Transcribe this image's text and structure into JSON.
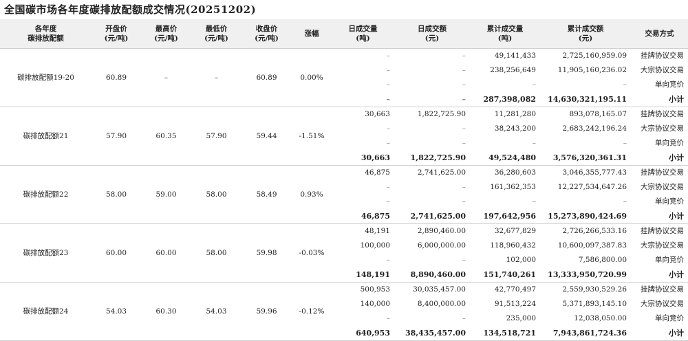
{
  "title": "全国碳市场各年度碳排放配额成交情况(20251202)",
  "headers": [
    [
      "各年度",
      "碳排放配额"
    ],
    [
      "开盘价",
      "(元/吨)"
    ],
    [
      "最高价",
      "(元/吨)"
    ],
    [
      "最低价",
      "(元/吨)"
    ],
    [
      "收盘价",
      "(元/吨)"
    ],
    [
      "涨幅",
      ""
    ],
    [
      "日成交量",
      "(吨)"
    ],
    [
      "日成交额",
      "(元)"
    ],
    [
      "累计成交量",
      "(吨)"
    ],
    [
      "累计成交额",
      "(元)"
    ],
    [
      "交易方式",
      ""
    ]
  ],
  "groups": [
    {
      "name": "碳排放配额19-20",
      "open": "60.89",
      "high": "–",
      "low": "–",
      "close": "60.89",
      "change": "0.00%",
      "rows": [
        {
          "day_vol": "–",
          "day_amt": "–",
          "cum_vol": "49,141,433",
          "cum_amt": "2,725,160,959.09",
          "method": "挂牌协议交易"
        },
        {
          "day_vol": "–",
          "day_amt": "–",
          "cum_vol": "238,256,649",
          "cum_amt": "11,905,160,236.02",
          "method": "大宗协议交易"
        },
        {
          "day_vol": "–",
          "day_amt": "–",
          "cum_vol": "–",
          "cum_amt": "–",
          "method": "单向竞价"
        },
        {
          "day_vol": "–",
          "day_amt": "–",
          "cum_vol": "287,398,082",
          "cum_amt": "14,630,321,195.11",
          "method": "小计"
        }
      ]
    },
    {
      "name": "碳排放配额21",
      "open": "57.90",
      "high": "60.35",
      "low": "57.90",
      "close": "59.44",
      "change": "-1.51%",
      "rows": [
        {
          "day_vol": "30,663",
          "day_amt": "1,822,725.90",
          "cum_vol": "11,281,280",
          "cum_amt": "893,078,165.07",
          "method": "挂牌协议交易"
        },
        {
          "day_vol": "–",
          "day_amt": "–",
          "cum_vol": "38,243,200",
          "cum_amt": "2,683,242,196.24",
          "method": "大宗协议交易"
        },
        {
          "day_vol": "–",
          "day_amt": "–",
          "cum_vol": "–",
          "cum_amt": "–",
          "method": "单向竞价"
        },
        {
          "day_vol": "30,663",
          "day_amt": "1,822,725.90",
          "cum_vol": "49,524,480",
          "cum_amt": "3,576,320,361.31",
          "method": "小计"
        }
      ]
    },
    {
      "name": "碳排放配额22",
      "open": "58.00",
      "high": "59.00",
      "low": "58.00",
      "close": "58.49",
      "change": "0.93%",
      "rows": [
        {
          "day_vol": "46,875",
          "day_amt": "2,741,625.00",
          "cum_vol": "36,280,603",
          "cum_amt": "3,046,355,777.43",
          "method": "挂牌协议交易"
        },
        {
          "day_vol": "–",
          "day_amt": "–",
          "cum_vol": "161,362,353",
          "cum_amt": "12,227,534,647.26",
          "method": "大宗协议交易"
        },
        {
          "day_vol": "–",
          "day_amt": "–",
          "cum_vol": "–",
          "cum_amt": "–",
          "method": "单向竞价"
        },
        {
          "day_vol": "46,875",
          "day_amt": "2,741,625.00",
          "cum_vol": "197,642,956",
          "cum_amt": "15,273,890,424.69",
          "method": "小计"
        }
      ]
    },
    {
      "name": "碳排放配额23",
      "open": "60.00",
      "high": "60.00",
      "low": "58.00",
      "close": "59.98",
      "change": "-0.03%",
      "rows": [
        {
          "day_vol": "48,191",
          "day_amt": "2,890,460.00",
          "cum_vol": "32,677,829",
          "cum_amt": "2,726,266,533.16",
          "method": "挂牌协议交易"
        },
        {
          "day_vol": "100,000",
          "day_amt": "6,000,000.00",
          "cum_vol": "118,960,432",
          "cum_amt": "10,600,097,387.83",
          "method": "大宗协议交易"
        },
        {
          "day_vol": "–",
          "day_amt": "–",
          "cum_vol": "102,000",
          "cum_amt": "7,586,800.00",
          "method": "单向竞价"
        },
        {
          "day_vol": "148,191",
          "day_amt": "8,890,460.00",
          "cum_vol": "151,740,261",
          "cum_amt": "13,333,950,720.99",
          "method": "小计"
        }
      ]
    },
    {
      "name": "碳排放配额24",
      "open": "54.03",
      "high": "60.30",
      "low": "54.03",
      "close": "59.96",
      "change": "-0.12%",
      "rows": [
        {
          "day_vol": "500,953",
          "day_amt": "30,035,457.00",
          "cum_vol": "42,770,497",
          "cum_amt": "2,559,930,529.26",
          "method": "挂牌协议交易"
        },
        {
          "day_vol": "140,000",
          "day_amt": "8,400,000.00",
          "cum_vol": "91,513,224",
          "cum_amt": "5,371,893,145.10",
          "method": "大宗协议交易"
        },
        {
          "day_vol": "–",
          "day_amt": "–",
          "cum_vol": "235,000",
          "cum_amt": "12,038,050.00",
          "method": "单向竞价"
        },
        {
          "day_vol": "640,953",
          "day_amt": "38,435,457.00",
          "cum_vol": "134,518,721",
          "cum_amt": "7,943,861,724.36",
          "method": "小计"
        }
      ]
    }
  ]
}
